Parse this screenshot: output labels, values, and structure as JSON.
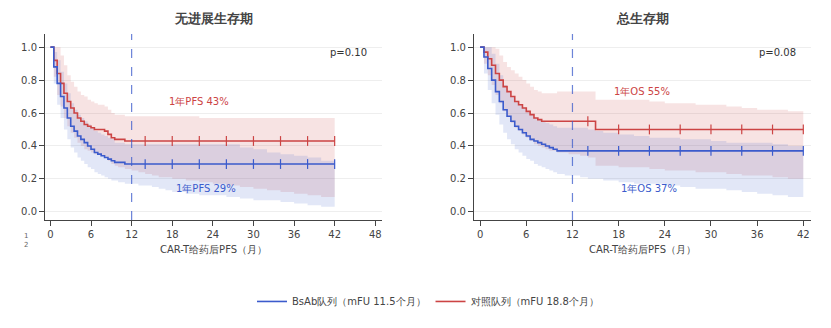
{
  "chart_data": [
    {
      "type": "line",
      "title": "无进展生存期",
      "x_label": "CAR-T给药后PFS（月）",
      "xlim": [
        -0.8,
        49
      ],
      "xticks": [
        0,
        6,
        12,
        18,
        24,
        30,
        36,
        42,
        48
      ],
      "ylim": [
        -0.05,
        1.08
      ],
      "yticks": [
        {
          "value": 0.0,
          "label": "0.0"
        },
        0.2,
        0.4,
        0.6,
        0.8,
        {
          "value": 1.0,
          "label": "1.0"
        }
      ],
      "grid": "y",
      "legend": "bottom",
      "line_style": "step",
      "vlines": [
        {
          "x": 12,
          "color": "#3b5bcc",
          "line_style": "dashed"
        }
      ],
      "annotations": [
        {
          "text": "1年PFS 43%",
          "x": 22,
          "y": 0.67,
          "color": "#cc4444"
        },
        {
          "text": "1年PFS 29%",
          "x": 23,
          "y": 0.14,
          "color": "#3b5bcc"
        },
        {
          "text": "p=0.10",
          "position": "upper right"
        },
        {
          "text": "1\n2",
          "position": "lower left"
        }
      ],
      "series": [
        {
          "name": "BsAb队列（mFU 11.5个月）",
          "color": "#3b5bcc",
          "x": [
            0,
            0.5,
            1,
            1.5,
            2,
            2.5,
            3,
            3.5,
            4,
            4.5,
            5,
            5.5,
            6,
            6.5,
            7,
            7.5,
            8,
            8.5,
            9,
            9.5,
            10,
            10.5,
            11,
            11.5,
            12,
            13,
            14,
            15,
            16,
            17,
            18,
            20,
            22,
            24,
            26,
            28,
            30,
            32,
            34,
            36,
            38,
            40,
            42
          ],
          "values": [
            1.0,
            0.88,
            0.78,
            0.7,
            0.63,
            0.57,
            0.52,
            0.49,
            0.46,
            0.44,
            0.42,
            0.4,
            0.38,
            0.36,
            0.35,
            0.34,
            0.33,
            0.32,
            0.31,
            0.3,
            0.3,
            0.3,
            0.29,
            0.29,
            0.29,
            0.29,
            0.29,
            0.29,
            0.29,
            0.29,
            0.29,
            0.29,
            0.29,
            0.29,
            0.29,
            0.29,
            0.29,
            0.29,
            0.29,
            0.29,
            0.29,
            0.29,
            0.29
          ],
          "ci_lo": [
            1.0,
            0.78,
            0.65,
            0.57,
            0.5,
            0.44,
            0.39,
            0.36,
            0.33,
            0.31,
            0.29,
            0.27,
            0.26,
            0.24,
            0.23,
            0.22,
            0.21,
            0.2,
            0.19,
            0.19,
            0.18,
            0.18,
            0.17,
            0.17,
            0.17,
            0.16,
            0.16,
            0.15,
            0.14,
            0.13,
            0.12,
            0.11,
            0.1,
            0.1,
            0.09,
            0.08,
            0.07,
            0.07,
            0.06,
            0.05,
            0.04,
            0.03,
            0.02
          ],
          "ci_hi": [
            1.0,
            0.97,
            0.92,
            0.85,
            0.78,
            0.72,
            0.66,
            0.62,
            0.59,
            0.57,
            0.55,
            0.53,
            0.51,
            0.49,
            0.48,
            0.47,
            0.46,
            0.45,
            0.44,
            0.42,
            0.42,
            0.42,
            0.41,
            0.41,
            0.41,
            0.41,
            0.41,
            0.41,
            0.41,
            0.41,
            0.41,
            0.41,
            0.41,
            0.41,
            0.41,
            0.39,
            0.38,
            0.36,
            0.35,
            0.34,
            0.33,
            0.31,
            0.3
          ],
          "censor_x": [
            14,
            18,
            22,
            26,
            30,
            34,
            38,
            42
          ]
        },
        {
          "name": "对照队列（mFU 18.8个月）",
          "color": "#cc4444",
          "x": [
            0,
            0.5,
            1,
            1.5,
            2,
            2.5,
            3,
            3.5,
            4,
            4.5,
            5,
            5.5,
            6,
            6.5,
            7,
            7.5,
            8,
            8.5,
            9,
            9.5,
            10,
            10.5,
            11,
            11.5,
            12,
            13,
            14,
            15,
            16,
            18,
            20,
            22,
            24,
            26,
            28,
            30,
            32,
            34,
            36,
            38,
            40,
            42
          ],
          "values": [
            1.0,
            0.92,
            0.84,
            0.78,
            0.72,
            0.67,
            0.63,
            0.6,
            0.57,
            0.55,
            0.53,
            0.52,
            0.51,
            0.5,
            0.5,
            0.5,
            0.49,
            0.47,
            0.45,
            0.44,
            0.44,
            0.44,
            0.43,
            0.43,
            0.43,
            0.43,
            0.43,
            0.43,
            0.43,
            0.43,
            0.43,
            0.43,
            0.43,
            0.43,
            0.43,
            0.43,
            0.43,
            0.43,
            0.43,
            0.43,
            0.43,
            0.43
          ],
          "ci_lo": [
            1.0,
            0.82,
            0.71,
            0.64,
            0.57,
            0.52,
            0.48,
            0.45,
            0.42,
            0.4,
            0.38,
            0.37,
            0.36,
            0.35,
            0.35,
            0.34,
            0.33,
            0.31,
            0.29,
            0.28,
            0.27,
            0.27,
            0.26,
            0.26,
            0.25,
            0.24,
            0.23,
            0.22,
            0.21,
            0.2,
            0.19,
            0.18,
            0.17,
            0.16,
            0.15,
            0.14,
            0.13,
            0.12,
            0.11,
            0.1,
            0.09,
            0.08
          ],
          "ci_hi": [
            1.0,
            1.0,
            1.0,
            0.95,
            0.89,
            0.83,
            0.79,
            0.76,
            0.73,
            0.71,
            0.7,
            0.68,
            0.67,
            0.66,
            0.65,
            0.65,
            0.64,
            0.62,
            0.6,
            0.59,
            0.59,
            0.59,
            0.58,
            0.58,
            0.58,
            0.58,
            0.58,
            0.58,
            0.58,
            0.58,
            0.58,
            0.57,
            0.57,
            0.57,
            0.57,
            0.57,
            0.57,
            0.57,
            0.57,
            0.57,
            0.57,
            0.57
          ],
          "censor_x": [
            14,
            18,
            22,
            26,
            30,
            34,
            38,
            42
          ]
        }
      ]
    },
    {
      "type": "line",
      "title": "总生存期",
      "x_label": "CAR-T给药后PFS（月）",
      "xlim": [
        -0.8,
        43
      ],
      "xticks": [
        0,
        6,
        12,
        18,
        24,
        30,
        36,
        42
      ],
      "ylim": [
        -0.05,
        1.08
      ],
      "yticks": [
        {
          "value": 0.0,
          "label": "0.0"
        },
        0.2,
        0.4,
        0.6,
        0.8,
        {
          "value": 1.0,
          "label": "1.0"
        }
      ],
      "grid": "y",
      "line_style": "step",
      "vlines": [
        {
          "x": 12,
          "color": "#3b5bcc",
          "line_style": "dashed"
        }
      ],
      "annotations": [
        {
          "text": "1年OS 55%",
          "x": 21,
          "y": 0.73,
          "color": "#cc4444"
        },
        {
          "text": "1年OS 37%",
          "x": 22,
          "y": 0.14,
          "color": "#3b5bcc"
        },
        {
          "text": "p=0.08",
          "position": "upper right"
        }
      ],
      "series": [
        {
          "name": "BsAb队列（mFU 11.5个月）",
          "color": "#3b5bcc",
          "x": [
            0,
            0.5,
            1,
            1.5,
            2,
            2.5,
            3,
            3.5,
            4,
            4.5,
            5,
            5.5,
            6,
            6.5,
            7,
            7.5,
            8,
            8.5,
            9,
            9.5,
            10,
            10.5,
            11,
            11.5,
            12,
            13,
            14,
            15,
            16,
            18,
            20,
            22,
            24,
            26,
            28,
            30,
            32,
            34,
            36,
            38,
            40,
            42
          ],
          "values": [
            1.0,
            0.94,
            0.87,
            0.8,
            0.73,
            0.67,
            0.62,
            0.58,
            0.55,
            0.52,
            0.5,
            0.48,
            0.46,
            0.44,
            0.43,
            0.42,
            0.41,
            0.4,
            0.39,
            0.38,
            0.37,
            0.37,
            0.37,
            0.37,
            0.37,
            0.37,
            0.37,
            0.37,
            0.37,
            0.37,
            0.37,
            0.37,
            0.37,
            0.37,
            0.37,
            0.37,
            0.37,
            0.37,
            0.37,
            0.37,
            0.37,
            0.37
          ],
          "ci_lo": [
            1.0,
            0.84,
            0.74,
            0.66,
            0.59,
            0.53,
            0.48,
            0.44,
            0.41,
            0.38,
            0.36,
            0.34,
            0.32,
            0.31,
            0.29,
            0.28,
            0.27,
            0.26,
            0.25,
            0.24,
            0.23,
            0.23,
            0.22,
            0.22,
            0.22,
            0.21,
            0.2,
            0.2,
            0.19,
            0.18,
            0.17,
            0.17,
            0.16,
            0.15,
            0.14,
            0.14,
            0.13,
            0.12,
            0.11,
            0.1,
            0.09,
            0.08
          ],
          "ci_hi": [
            1.0,
            1.0,
            1.0,
            0.96,
            0.9,
            0.83,
            0.77,
            0.73,
            0.7,
            0.67,
            0.65,
            0.63,
            0.61,
            0.59,
            0.57,
            0.56,
            0.55,
            0.54,
            0.53,
            0.52,
            0.51,
            0.51,
            0.51,
            0.51,
            0.51,
            0.51,
            0.5,
            0.49,
            0.48,
            0.47,
            0.46,
            0.45,
            0.45,
            0.44,
            0.44,
            0.43,
            0.42,
            0.42,
            0.42,
            0.41,
            0.4,
            0.4
          ],
          "censor_x": [
            14,
            18,
            22,
            26,
            30,
            34,
            38,
            42
          ]
        },
        {
          "name": "对照队列（mFU 18.8个月）",
          "color": "#cc4444",
          "x": [
            0,
            0.5,
            1,
            1.5,
            2,
            2.5,
            3,
            3.5,
            4,
            4.5,
            5,
            5.5,
            6,
            6.5,
            7,
            7.5,
            8,
            8.5,
            9,
            9.5,
            10,
            10.5,
            11,
            11.5,
            12,
            13,
            14,
            15,
            16,
            18,
            20,
            22,
            24,
            26,
            28,
            30,
            32,
            34,
            36,
            38,
            40,
            42
          ],
          "values": [
            1.0,
            0.97,
            0.93,
            0.89,
            0.84,
            0.8,
            0.76,
            0.73,
            0.7,
            0.67,
            0.65,
            0.63,
            0.61,
            0.59,
            0.57,
            0.56,
            0.55,
            0.55,
            0.55,
            0.55,
            0.55,
            0.55,
            0.55,
            0.55,
            0.55,
            0.55,
            0.55,
            0.5,
            0.5,
            0.5,
            0.5,
            0.5,
            0.5,
            0.5,
            0.5,
            0.5,
            0.5,
            0.5,
            0.5,
            0.5,
            0.5,
            0.5
          ],
          "ci_lo": [
            1.0,
            0.9,
            0.83,
            0.77,
            0.71,
            0.66,
            0.61,
            0.58,
            0.54,
            0.51,
            0.49,
            0.47,
            0.45,
            0.43,
            0.41,
            0.4,
            0.39,
            0.38,
            0.37,
            0.37,
            0.36,
            0.36,
            0.36,
            0.35,
            0.35,
            0.34,
            0.33,
            0.28,
            0.28,
            0.27,
            0.27,
            0.26,
            0.25,
            0.25,
            0.24,
            0.24,
            0.23,
            0.22,
            0.22,
            0.21,
            0.2,
            0.19
          ],
          "ci_hi": [
            1.0,
            1.0,
            1.0,
            1.0,
            0.99,
            0.95,
            0.91,
            0.88,
            0.86,
            0.84,
            0.82,
            0.8,
            0.78,
            0.76,
            0.74,
            0.73,
            0.72,
            0.72,
            0.72,
            0.72,
            0.73,
            0.73,
            0.73,
            0.73,
            0.73,
            0.73,
            0.73,
            0.68,
            0.68,
            0.68,
            0.68,
            0.67,
            0.66,
            0.66,
            0.65,
            0.65,
            0.64,
            0.63,
            0.62,
            0.62,
            0.61,
            0.6
          ],
          "censor_x": [
            14,
            18,
            22,
            26,
            30,
            34,
            38,
            42
          ]
        }
      ]
    }
  ]
}
